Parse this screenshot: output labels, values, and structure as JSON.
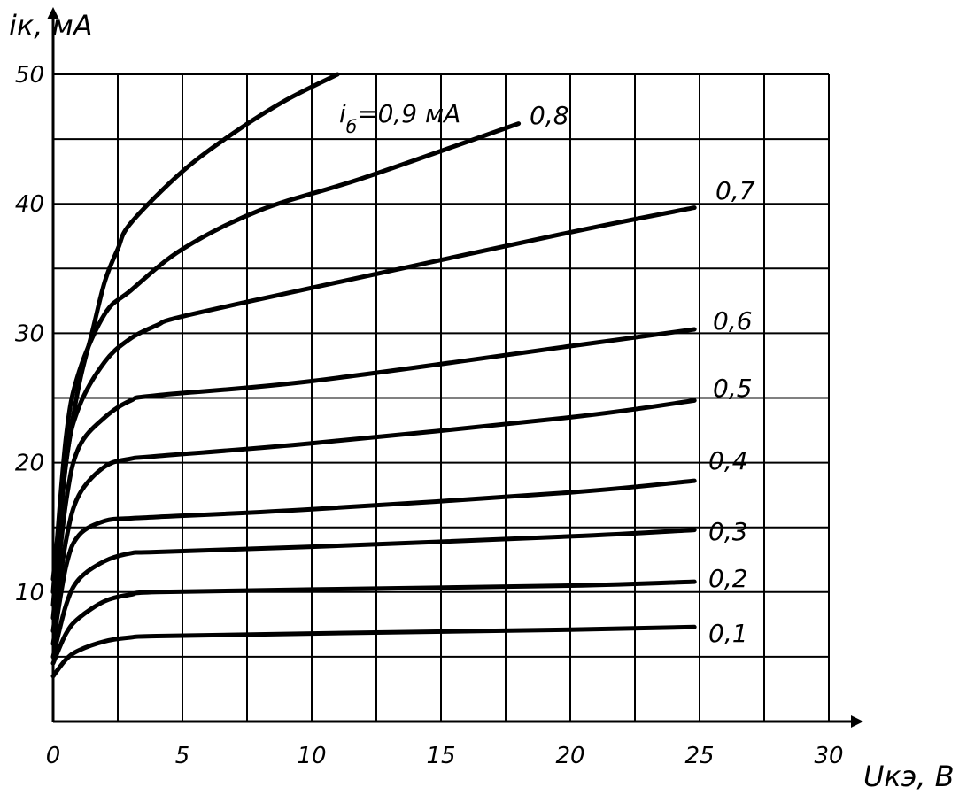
{
  "chart_data": {
    "type": "line",
    "title": "",
    "xlabel": "Uкэ, В",
    "ylabel": "iк, мА",
    "xlim": [
      0,
      30
    ],
    "ylim": [
      0,
      50
    ],
    "grid": true,
    "legend": "inline-labels",
    "x_ticks": [
      "0",
      "5",
      "10",
      "15",
      "20",
      "25",
      "30"
    ],
    "y_ticks": [
      "10",
      "20",
      "30",
      "40",
      "50"
    ],
    "series": [
      {
        "name": "0,1",
        "x": [
          0,
          0.5,
          1,
          2,
          3,
          4,
          10,
          20,
          24.8
        ],
        "y": [
          3.5,
          4.8,
          5.5,
          6.2,
          6.5,
          6.6,
          6.8,
          7.1,
          7.3
        ]
      },
      {
        "name": "0,2",
        "x": [
          0,
          0.5,
          1,
          2,
          3,
          4,
          10,
          20,
          24.8
        ],
        "y": [
          4.5,
          6.8,
          8.0,
          9.3,
          9.8,
          10.0,
          10.2,
          10.5,
          10.8
        ]
      },
      {
        "name": "0,3",
        "x": [
          0,
          0.5,
          1,
          2,
          3,
          4,
          10,
          20,
          24.8
        ],
        "y": [
          5,
          9.0,
          11.0,
          12.4,
          13.0,
          13.1,
          13.5,
          14.3,
          14.8
        ]
      },
      {
        "name": "0,4",
        "x": [
          0,
          0.5,
          1,
          2,
          3,
          4,
          10,
          20,
          24.8
        ],
        "y": [
          6,
          12.0,
          14.4,
          15.5,
          15.7,
          15.8,
          16.4,
          17.7,
          18.6
        ]
      },
      {
        "name": "0,5",
        "x": [
          0,
          0.5,
          1,
          2,
          3,
          4,
          10,
          20,
          24.8
        ],
        "y": [
          7,
          14.0,
          17.5,
          19.7,
          20.3,
          20.5,
          21.5,
          23.5,
          24.8
        ]
      },
      {
        "name": "0,6",
        "x": [
          0,
          0.5,
          1,
          2,
          3,
          4,
          10,
          20,
          24.8
        ],
        "y": [
          8,
          17.0,
          21.2,
          23.5,
          24.8,
          25.2,
          26.3,
          29.0,
          30.3
        ]
      },
      {
        "name": "0,7",
        "x": [
          0,
          0.5,
          1,
          2,
          3,
          4,
          5,
          10,
          20,
          24.8
        ],
        "y": [
          9,
          20.0,
          24.3,
          27.8,
          29.6,
          30.6,
          31.3,
          33.5,
          37.8,
          39.7
        ]
      },
      {
        "name": "0,8",
        "x": [
          0,
          0.5,
          1,
          2,
          3,
          5,
          8,
          12,
          18
        ],
        "y": [
          10,
          22.0,
          27.0,
          31.5,
          33.3,
          36.5,
          39.5,
          42.0,
          46.2
        ]
      },
      {
        "name": "i<sub>б</sub>=0,9 мА",
        "x": [
          0,
          0.5,
          1,
          1.5,
          2,
          2.5,
          3,
          5,
          7,
          9,
          11
        ],
        "y": [
          11,
          20.0,
          26.0,
          30.0,
          34.0,
          36.5,
          38.5,
          42.5,
          45.5,
          48.0,
          50.0
        ]
      }
    ],
    "labels": {
      "series_label_09_prefix": "i",
      "series_label_09_sub": "б",
      "series_label_09_rest": "=0,9 мА"
    }
  }
}
